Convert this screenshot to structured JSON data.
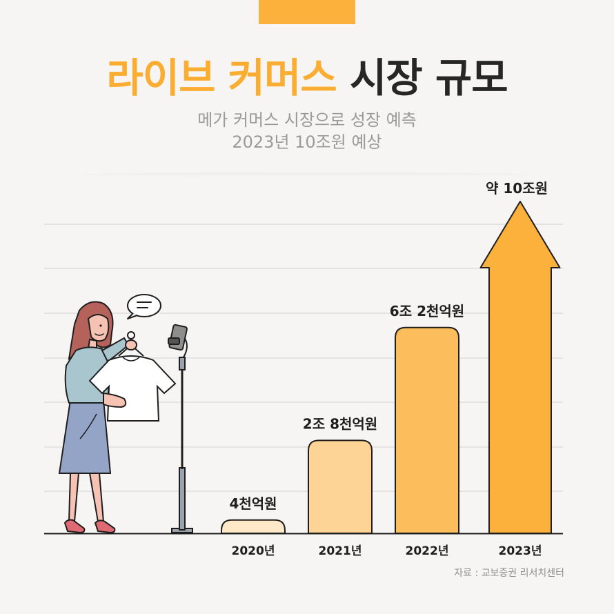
{
  "header": {
    "title_accent": "라이브 커머스",
    "title_rest": "시장 규모",
    "subtitle_line1": "메가 커머스 시장으로 성장 예측",
    "subtitle_line2": "2023년 10조원 예상"
  },
  "source": "자료 : 교보증권 리서치센터",
  "colors": {
    "accent": "#fbad32",
    "bar_colors": [
      "#ffe9c8",
      "#fdd396",
      "#fcbd5c",
      "#fbb13c"
    ],
    "outline": "#1e1e1e"
  },
  "chart_data": {
    "type": "bar",
    "categories": [
      "2020년",
      "2021년",
      "2022년",
      "2023년"
    ],
    "values": [
      4000,
      28000,
      62000,
      100000
    ],
    "value_unit": "억원",
    "data_labels": [
      "4천억원",
      "2조 8천억원",
      "6조 2천억원",
      "약 10조원"
    ],
    "title": "라이브 커머스 시장 규모",
    "grid": true,
    "last_bar_style": "arrow"
  }
}
